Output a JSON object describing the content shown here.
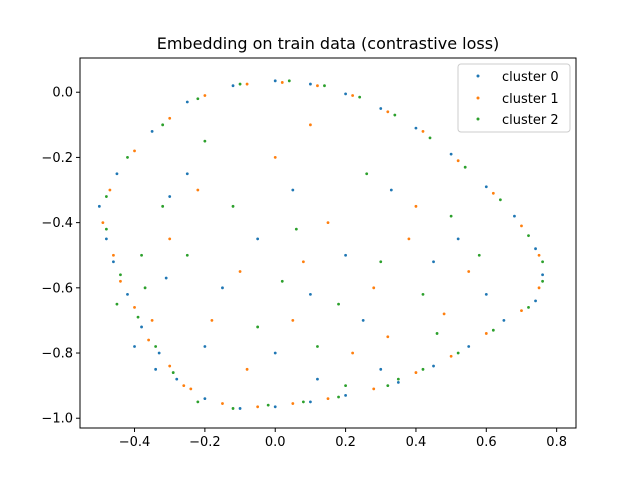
{
  "chart_data": {
    "type": "scatter",
    "title": "Embedding on train data (contrastive loss)",
    "xlabel": "",
    "ylabel": "",
    "xlim": [
      -0.555,
      0.855
    ],
    "ylim": [
      -1.03,
      0.105
    ],
    "x_ticks": [
      -0.4,
      -0.2,
      0.0,
      0.2,
      0.4,
      0.6,
      0.8
    ],
    "x_tick_labels": [
      "−0.4",
      "−0.2",
      "0.0",
      "0.2",
      "0.4",
      "0.6",
      "0.8"
    ],
    "y_ticks": [
      0.0,
      -0.2,
      -0.4,
      -0.6,
      -0.8,
      -1.0
    ],
    "y_tick_labels": [
      "0.0",
      "−0.2",
      "−0.4",
      "−0.6",
      "−0.8",
      "−1.0"
    ],
    "grid": false,
    "legend_position": "top-right",
    "series": [
      {
        "name": "cluster 0",
        "color": "#1f77b4",
        "points": [
          [
            0.0,
            0.035
          ],
          [
            0.1,
            0.025
          ],
          [
            0.2,
            -0.005
          ],
          [
            0.3,
            -0.05
          ],
          [
            0.4,
            -0.11
          ],
          [
            0.5,
            -0.19
          ],
          [
            0.6,
            -0.29
          ],
          [
            0.68,
            -0.38
          ],
          [
            0.74,
            -0.48
          ],
          [
            0.76,
            -0.56
          ],
          [
            0.74,
            -0.64
          ],
          [
            0.65,
            -0.7
          ],
          [
            0.55,
            -0.78
          ],
          [
            0.45,
            -0.84
          ],
          [
            0.35,
            -0.89
          ],
          [
            0.2,
            -0.93
          ],
          [
            0.1,
            -0.95
          ],
          [
            0.0,
            -0.965
          ],
          [
            -0.1,
            -0.97
          ],
          [
            -0.2,
            -0.94
          ],
          [
            -0.28,
            -0.88
          ],
          [
            -0.33,
            -0.8
          ],
          [
            -0.38,
            -0.72
          ],
          [
            -0.42,
            -0.62
          ],
          [
            -0.48,
            -0.45
          ],
          [
            -0.5,
            -0.35
          ],
          [
            -0.45,
            -0.25
          ],
          [
            -0.35,
            -0.12
          ],
          [
            -0.25,
            -0.03
          ],
          [
            -0.12,
            0.02
          ],
          [
            -0.46,
            -0.52
          ],
          [
            -0.4,
            -0.78
          ],
          [
            -0.3,
            -0.32
          ],
          [
            -0.31,
            -0.57
          ],
          [
            -0.2,
            -0.78
          ],
          [
            -0.05,
            -0.45
          ],
          [
            0.1,
            -0.62
          ],
          [
            0.25,
            -0.7
          ],
          [
            0.33,
            -0.3
          ],
          [
            0.45,
            -0.52
          ],
          [
            0.52,
            -0.45
          ],
          [
            0.6,
            -0.62
          ],
          [
            0.12,
            -0.88
          ],
          [
            0.3,
            -0.85
          ],
          [
            -0.15,
            -0.6
          ],
          [
            0.05,
            -0.3
          ],
          [
            0.2,
            -0.5
          ],
          [
            -0.25,
            -0.25
          ],
          [
            -0.34,
            -0.85
          ],
          [
            0.0,
            -0.8
          ]
        ]
      },
      {
        "name": "cluster 1",
        "color": "#ff7f0e",
        "points": [
          [
            0.02,
            0.03
          ],
          [
            0.12,
            0.02
          ],
          [
            0.22,
            -0.01
          ],
          [
            0.32,
            -0.06
          ],
          [
            0.42,
            -0.12
          ],
          [
            0.52,
            -0.21
          ],
          [
            0.62,
            -0.31
          ],
          [
            0.7,
            -0.41
          ],
          [
            0.75,
            -0.5
          ],
          [
            0.75,
            -0.6
          ],
          [
            0.7,
            -0.67
          ],
          [
            0.6,
            -0.74
          ],
          [
            0.5,
            -0.81
          ],
          [
            0.4,
            -0.86
          ],
          [
            0.28,
            -0.91
          ],
          [
            0.15,
            -0.94
          ],
          [
            0.05,
            -0.955
          ],
          [
            -0.05,
            -0.965
          ],
          [
            -0.15,
            -0.955
          ],
          [
            -0.24,
            -0.91
          ],
          [
            -0.3,
            -0.84
          ],
          [
            -0.36,
            -0.76
          ],
          [
            -0.4,
            -0.66
          ],
          [
            -0.46,
            -0.5
          ],
          [
            -0.49,
            -0.4
          ],
          [
            -0.47,
            -0.3
          ],
          [
            -0.4,
            -0.18
          ],
          [
            -0.3,
            -0.08
          ],
          [
            -0.2,
            -0.01
          ],
          [
            -0.08,
            0.025
          ],
          [
            -0.44,
            -0.58
          ],
          [
            -0.35,
            -0.7
          ],
          [
            -0.22,
            -0.3
          ],
          [
            -0.1,
            -0.55
          ],
          [
            0.05,
            -0.7
          ],
          [
            0.15,
            -0.4
          ],
          [
            0.28,
            -0.6
          ],
          [
            0.38,
            -0.45
          ],
          [
            0.48,
            -0.68
          ],
          [
            0.4,
            -0.35
          ],
          [
            0.22,
            -0.8
          ],
          [
            -0.08,
            -0.85
          ],
          [
            0.0,
            -0.2
          ],
          [
            0.1,
            -0.1
          ],
          [
            -0.3,
            -0.45
          ],
          [
            0.55,
            -0.55
          ],
          [
            0.32,
            -0.75
          ],
          [
            -0.18,
            -0.7
          ],
          [
            0.08,
            -0.52
          ],
          [
            -0.26,
            -0.9
          ]
        ]
      },
      {
        "name": "cluster 2",
        "color": "#2ca02c",
        "points": [
          [
            0.04,
            0.035
          ],
          [
            0.14,
            0.02
          ],
          [
            0.24,
            -0.015
          ],
          [
            0.34,
            -0.07
          ],
          [
            0.44,
            -0.14
          ],
          [
            0.54,
            -0.23
          ],
          [
            0.64,
            -0.33
          ],
          [
            0.72,
            -0.44
          ],
          [
            0.76,
            -0.52
          ],
          [
            0.76,
            -0.58
          ],
          [
            0.72,
            -0.66
          ],
          [
            0.62,
            -0.73
          ],
          [
            0.52,
            -0.8
          ],
          [
            0.42,
            -0.85
          ],
          [
            0.32,
            -0.9
          ],
          [
            0.18,
            -0.935
          ],
          [
            0.08,
            -0.95
          ],
          [
            -0.02,
            -0.96
          ],
          [
            -0.12,
            -0.97
          ],
          [
            -0.22,
            -0.95
          ],
          [
            -0.29,
            -0.86
          ],
          [
            -0.34,
            -0.78
          ],
          [
            -0.39,
            -0.69
          ],
          [
            -0.44,
            -0.56
          ],
          [
            -0.48,
            -0.42
          ],
          [
            -0.48,
            -0.32
          ],
          [
            -0.42,
            -0.2
          ],
          [
            -0.32,
            -0.1
          ],
          [
            -0.22,
            -0.02
          ],
          [
            -0.1,
            0.025
          ],
          [
            -0.45,
            -0.65
          ],
          [
            -0.37,
            -0.6
          ],
          [
            -0.25,
            -0.5
          ],
          [
            -0.12,
            -0.35
          ],
          [
            0.02,
            -0.58
          ],
          [
            0.18,
            -0.65
          ],
          [
            0.3,
            -0.52
          ],
          [
            0.42,
            -0.62
          ],
          [
            0.5,
            -0.38
          ],
          [
            0.58,
            -0.5
          ],
          [
            0.26,
            -0.25
          ],
          [
            0.12,
            -0.78
          ],
          [
            -0.05,
            -0.72
          ],
          [
            -0.32,
            -0.35
          ],
          [
            0.35,
            -0.88
          ],
          [
            0.46,
            -0.74
          ],
          [
            -0.2,
            -0.15
          ],
          [
            0.06,
            -0.42
          ],
          [
            -0.38,
            -0.5
          ],
          [
            0.2,
            -0.9
          ]
        ]
      }
    ]
  }
}
